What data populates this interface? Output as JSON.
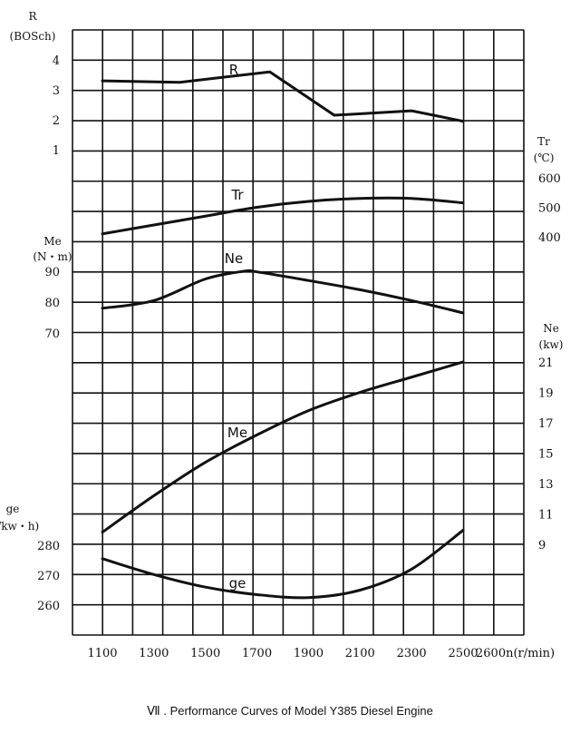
{
  "caption": "Ⅶ . Performance Curves of Model Y385 Diesel Engine",
  "chart_data": {
    "type": "line",
    "title": "",
    "x": {
      "label": "n(r/min)",
      "ticks": [
        1100,
        1300,
        1500,
        1700,
        1900,
        2100,
        2300,
        2500
      ],
      "last_tick_label": "2600n(r/min)",
      "range": [
        1000,
        2600
      ]
    },
    "grid": true,
    "axes": {
      "R": {
        "title_lines": [
          "R",
          "(BOSch)"
        ],
        "side": "left",
        "ticks": [
          1,
          2,
          3,
          4
        ]
      },
      "Tr": {
        "title_lines": [
          "Tr",
          "(℃)"
        ],
        "side": "right",
        "ticks": [
          400,
          500,
          600
        ]
      },
      "Me": {
        "title_lines": [
          "Me",
          "(N・m)"
        ],
        "side": "left",
        "ticks": [
          70,
          80,
          90
        ]
      },
      "Ne": {
        "title_lines": [
          "Ne",
          "(kw)"
        ],
        "side": "right",
        "ticks": [
          9,
          11,
          13,
          15,
          17,
          19,
          21
        ]
      },
      "ge": {
        "title_lines": [
          "ge",
          "(g/kw・h)"
        ],
        "side": "left",
        "ticks": [
          260,
          270,
          280
        ]
      }
    },
    "series": [
      {
        "name": "R",
        "axis": "R",
        "x": [
          1100,
          1400,
          1750,
          2000,
          2300,
          2500
        ],
        "values": [
          3.3,
          3.25,
          3.6,
          2.15,
          2.3,
          1.95
        ]
      },
      {
        "name": "Tr",
        "axis": "Tr",
        "x": [
          1100,
          1300,
          1500,
          1700,
          1900,
          2100,
          2300,
          2500
        ],
        "values": [
          410,
          440,
          470,
          500,
          520,
          530,
          530,
          515
        ]
      },
      {
        "name": "Ne",
        "axis": "Me",
        "x": [
          1100,
          1300,
          1500,
          1650,
          1700,
          1900,
          2100,
          2300,
          2500
        ],
        "values": [
          78,
          80.5,
          87.5,
          90,
          89.8,
          87,
          84,
          80.5,
          76.5
        ]
      },
      {
        "name": "Me",
        "axis": "Ne",
        "x": [
          1100,
          1300,
          1500,
          1700,
          1900,
          2100,
          2300,
          2500
        ],
        "values": [
          9.8,
          12.2,
          14.4,
          16.2,
          17.8,
          19,
          20,
          21
        ]
      },
      {
        "name": "ge",
        "axis": "ge",
        "x": [
          1100,
          1300,
          1500,
          1700,
          1900,
          2100,
          2300,
          2500
        ],
        "values": [
          275.5,
          270.2,
          266,
          263.5,
          262.5,
          265,
          272,
          285
        ]
      }
    ]
  }
}
